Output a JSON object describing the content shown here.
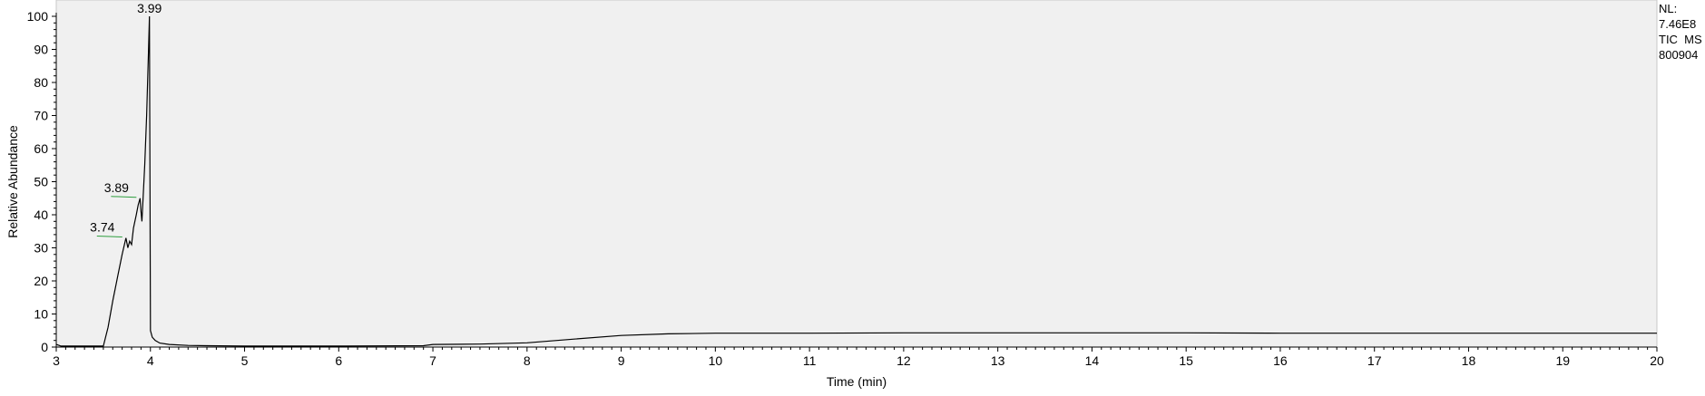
{
  "info": {
    "nl_label": "NL:",
    "nl_value": "7.46E8",
    "trace_label": "TIC  MS",
    "sample_id": "800904"
  },
  "chart_data": {
    "type": "line",
    "title": "",
    "xlabel": "Time (min)",
    "ylabel": "Relative Abundance",
    "xlim": [
      3,
      20
    ],
    "ylim": [
      0,
      100
    ],
    "x_ticks": [
      3,
      4,
      5,
      6,
      7,
      8,
      9,
      10,
      11,
      12,
      13,
      14,
      15,
      16,
      17,
      18,
      19,
      20
    ],
    "y_ticks": [
      0,
      10,
      20,
      30,
      40,
      50,
      60,
      70,
      80,
      90,
      100
    ],
    "grid": false,
    "plot_background": "#f0f0f0",
    "line_color": "#000000",
    "annotation_color": "#2e9e3e",
    "series": [
      {
        "x": [
          3.0,
          3.05,
          3.5,
          3.55,
          3.6,
          3.65,
          3.7,
          3.74,
          3.76,
          3.78,
          3.8,
          3.82,
          3.85,
          3.87,
          3.89,
          3.9,
          3.91,
          3.92,
          3.94,
          3.96,
          3.98,
          3.99,
          4.0,
          4.02,
          4.05,
          4.1,
          4.2,
          4.4,
          4.6,
          5.0,
          6.0,
          6.9,
          7.0,
          7.5,
          8.0,
          8.5,
          9.0,
          9.5,
          10.0,
          11.0,
          12.0,
          13.0,
          14.0,
          15.0,
          16.0,
          17.0,
          18.0,
          19.0,
          20.0
        ],
        "y": [
          0.8,
          0.3,
          0.3,
          6,
          14,
          21,
          28,
          33,
          30,
          32,
          31,
          36,
          40,
          43,
          45,
          41,
          38,
          44,
          55,
          70,
          90,
          100,
          5,
          3,
          2,
          1.2,
          0.8,
          0.5,
          0.4,
          0.3,
          0.3,
          0.4,
          0.8,
          0.9,
          1.3,
          2.4,
          3.5,
          4.0,
          4.2,
          4.2,
          4.3,
          4.3,
          4.3,
          4.3,
          4.2,
          4.2,
          4.2,
          4.2,
          4.2
        ]
      }
    ],
    "annotations": [
      {
        "text": "3.99",
        "x": 3.99,
        "y": 100
      },
      {
        "text": "3.89",
        "x": 3.89,
        "y": 45
      },
      {
        "text": "3.74",
        "x": 3.74,
        "y": 33
      }
    ]
  }
}
